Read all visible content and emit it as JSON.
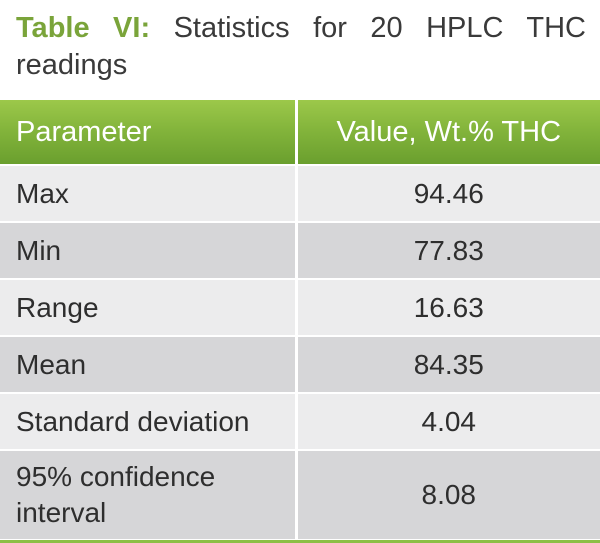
{
  "caption": {
    "label": "Table VI:",
    "text": "Statistics for 20 HPLC THC readings"
  },
  "table": {
    "headers": [
      "Parameter",
      "Value, Wt.% THC"
    ],
    "rows": [
      {
        "parameter": "Max",
        "value": "94.46"
      },
      {
        "parameter": "Min",
        "value": "77.83"
      },
      {
        "parameter": "Range",
        "value": "16.63"
      },
      {
        "parameter": "Mean",
        "value": "84.35"
      },
      {
        "parameter": "Standard deviation",
        "value": "4.04"
      },
      {
        "parameter": "95% confidence interval",
        "value": "8.08"
      }
    ]
  },
  "colors": {
    "accent_green": "#7aa43a",
    "header_green": "#84b53c",
    "row_light": "#ececed",
    "row_dark": "#d6d6d8"
  }
}
